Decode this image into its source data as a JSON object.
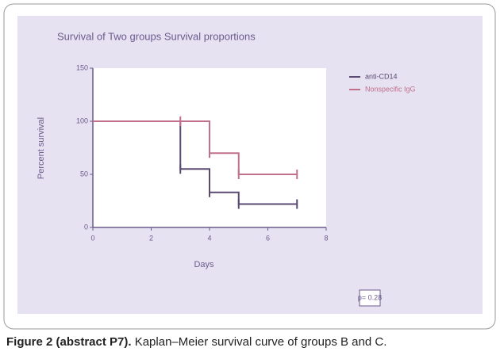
{
  "chart_data": {
    "type": "step",
    "title": "Survival of Two groups Survival proportions",
    "x_label": "Days",
    "y_label": "Percent survival",
    "x": [
      0,
      3,
      4,
      5,
      7
    ],
    "series": [
      {
        "name": "anti-CD14",
        "color": "#5a4a72",
        "values": [
          100,
          55,
          33,
          22,
          22
        ]
      },
      {
        "name": "Nonspecific IgG",
        "color": "#c0708a",
        "values": [
          100,
          100,
          70,
          50,
          50
        ]
      }
    ],
    "xlim": [
      0,
      8
    ],
    "xticks": [
      0,
      2,
      4,
      6,
      8
    ],
    "ylim": [
      0,
      150
    ],
    "yticks": [
      0,
      50,
      100,
      150
    ],
    "legend": "upper right",
    "annotation": "p= 0.28"
  },
  "caption": {
    "label": "Figure 2 (abstract P7).",
    "text": " Kaplan–Meier survival curve of groups B and C."
  }
}
